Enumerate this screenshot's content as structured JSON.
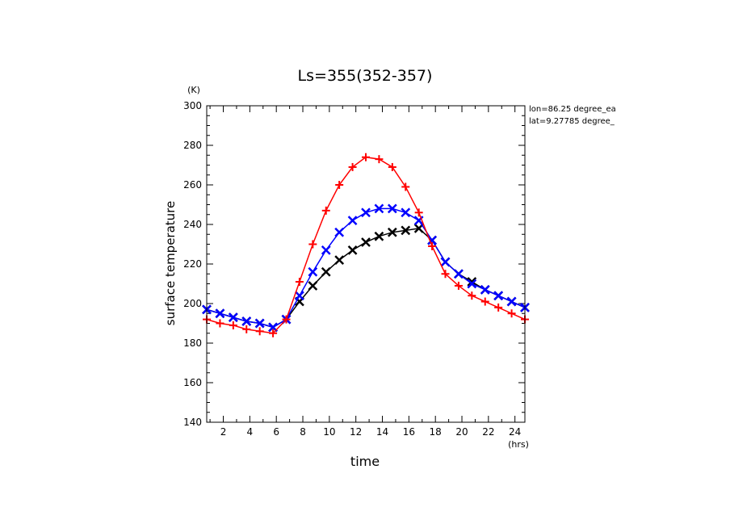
{
  "chart_data": {
    "type": "line",
    "title": "Ls=355(352-357)",
    "xlabel": "time",
    "ylabel": "surface temperature",
    "xunit": "(hrs)",
    "yunit": "(K)",
    "xlim": [
      0.75,
      24.75
    ],
    "ylim": [
      140,
      300
    ],
    "xticks": [
      2,
      4,
      6,
      8,
      10,
      12,
      14,
      16,
      18,
      20,
      22,
      24
    ],
    "yticks": [
      140,
      160,
      180,
      200,
      220,
      240,
      260,
      280,
      300
    ],
    "annotations": [
      "lon=86.25 degree_ea",
      "lat=9.27785 degree_"
    ],
    "x": [
      0.75,
      1.75,
      2.75,
      3.75,
      4.75,
      5.75,
      6.75,
      7.75,
      8.75,
      9.75,
      10.75,
      11.75,
      12.75,
      13.75,
      14.75,
      15.75,
      16.75,
      17.75,
      18.75,
      19.75,
      20.75,
      21.75,
      22.75,
      23.75,
      24.75
    ],
    "series": [
      {
        "color": "#000000",
        "marker": "x",
        "values": [
          197,
          195,
          193,
          191,
          190,
          188,
          192,
          201,
          209,
          216,
          222,
          227,
          231,
          234,
          236,
          237,
          238,
          232,
          221,
          215,
          211,
          207,
          204,
          201,
          198
        ]
      },
      {
        "color": "#0000ff",
        "marker": "x",
        "values": [
          197,
          195,
          193,
          191,
          190,
          188,
          192,
          204,
          216,
          227,
          236,
          242,
          246,
          248,
          248,
          246,
          242,
          232,
          221,
          215,
          210,
          207,
          204,
          201,
          198
        ]
      },
      {
        "color": "#ff0000",
        "marker": "+",
        "values": [
          192,
          190,
          189,
          187,
          186,
          185,
          192,
          211,
          230,
          247,
          260,
          269,
          274,
          273,
          269,
          259,
          246,
          229,
          215,
          209,
          204,
          201,
          198,
          195,
          192
        ]
      }
    ]
  }
}
